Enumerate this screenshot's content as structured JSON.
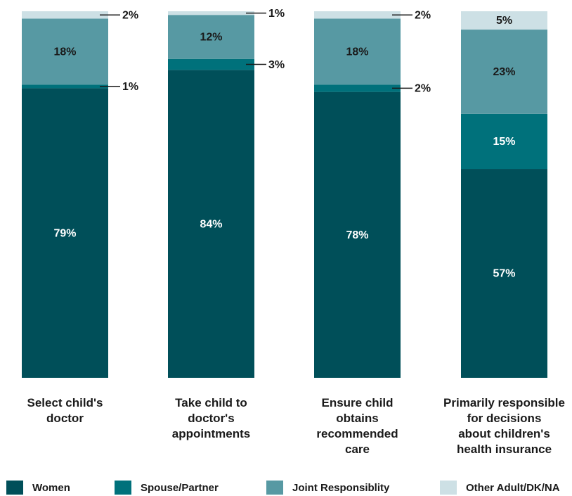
{
  "chart_data": {
    "type": "bar",
    "stacked": true,
    "categories": [
      [
        "Select child's",
        "doctor"
      ],
      [
        "Take child to",
        "doctor's",
        "appointments"
      ],
      [
        "Ensure child",
        "obtains",
        "recommended",
        "care"
      ],
      [
        "Primarily responsible",
        "for decisions",
        "about children's",
        "health insurance"
      ]
    ],
    "series": [
      {
        "name": "Women",
        "color": "#004f59",
        "label_color": "#ffffff",
        "values": [
          79,
          84,
          78,
          57
        ],
        "labels": [
          "79%",
          "84%",
          "78%",
          "57%"
        ]
      },
      {
        "name": "Spouse/Partner",
        "color": "#00717b",
        "label_color": "#ffffff",
        "values": [
          1,
          3,
          2,
          15
        ],
        "labels": [
          "1%",
          "3%",
          "2%",
          "15%"
        ]
      },
      {
        "name": "Joint Responsiblity",
        "color": "#5799a3",
        "label_color": "#1a1a1a",
        "values": [
          18,
          12,
          18,
          23
        ],
        "labels": [
          "18%",
          "12%",
          "18%",
          "23%"
        ]
      },
      {
        "name": "Other Adult/DK/NA",
        "color": "#cde0e5",
        "label_color": "#1a1a1a",
        "values": [
          2,
          1,
          2,
          5
        ],
        "labels": [
          "2%",
          "1%",
          "2%",
          "5%"
        ]
      }
    ],
    "ylim": [
      0,
      100
    ],
    "grid": false,
    "legend_position": "bottom",
    "title": "",
    "xlabel": "",
    "ylabel": ""
  }
}
